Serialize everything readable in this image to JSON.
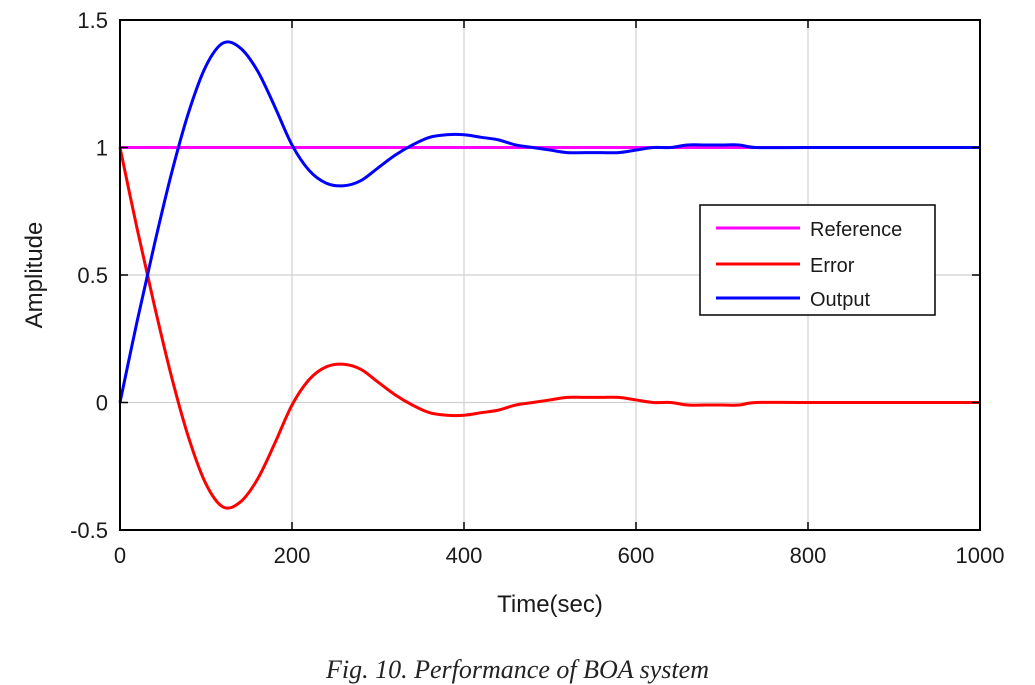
{
  "chart_data": {
    "type": "line",
    "title": "",
    "xlabel": "Time(sec)",
    "ylabel": "Amplitude",
    "xlim": [
      0,
      1000
    ],
    "ylim": [
      -0.5,
      1.5
    ],
    "xticks": [
      0,
      200,
      400,
      600,
      800,
      1000
    ],
    "xtick_labels": [
      "0",
      "200",
      "400",
      "600",
      "800",
      "1000"
    ],
    "yticks": [
      -0.5,
      0,
      0.5,
      1,
      1.5
    ],
    "ytick_labels": [
      "-0.5",
      "0",
      "0.5",
      "1",
      "1.5"
    ],
    "grid": true,
    "legend_position": "right-middle (inside)",
    "x": [
      0,
      20,
      40,
      60,
      80,
      100,
      120,
      140,
      160,
      180,
      200,
      220,
      240,
      260,
      280,
      300,
      320,
      340,
      360,
      380,
      400,
      420,
      440,
      460,
      480,
      500,
      520,
      540,
      560,
      580,
      600,
      620,
      640,
      660,
      680,
      700,
      720,
      740,
      800,
      900,
      1000
    ],
    "series": [
      {
        "name": "Reference",
        "color": "#ff00ff",
        "values": [
          1,
          1,
          1,
          1,
          1,
          1,
          1,
          1,
          1,
          1,
          1,
          1,
          1,
          1,
          1,
          1,
          1,
          1,
          1,
          1,
          1,
          1,
          1,
          1,
          1,
          1,
          1,
          1,
          1,
          1,
          1,
          1,
          1,
          1,
          1,
          1,
          1,
          1,
          1,
          1,
          1
        ]
      },
      {
        "name": "Error",
        "color": "#ff0000",
        "values": [
          1.0,
          0.68,
          0.38,
          0.1,
          -0.14,
          -0.32,
          -0.41,
          -0.39,
          -0.3,
          -0.16,
          -0.01,
          0.09,
          0.14,
          0.15,
          0.13,
          0.08,
          0.03,
          -0.01,
          -0.04,
          -0.05,
          -0.05,
          -0.04,
          -0.03,
          -0.01,
          0.0,
          0.01,
          0.02,
          0.02,
          0.02,
          0.02,
          0.01,
          0.0,
          0.0,
          -0.01,
          -0.01,
          -0.01,
          -0.01,
          0.0,
          0.0,
          0.0,
          0.0
        ]
      },
      {
        "name": "Output",
        "color": "#0000ff",
        "values": [
          0.0,
          0.32,
          0.62,
          0.9,
          1.14,
          1.32,
          1.41,
          1.39,
          1.3,
          1.16,
          1.01,
          0.91,
          0.86,
          0.85,
          0.87,
          0.92,
          0.97,
          1.01,
          1.04,
          1.05,
          1.05,
          1.04,
          1.03,
          1.01,
          1.0,
          0.99,
          0.98,
          0.98,
          0.98,
          0.98,
          0.99,
          1.0,
          1.0,
          1.01,
          1.01,
          1.01,
          1.01,
          1.0,
          1.0,
          1.0,
          1.0
        ]
      }
    ]
  },
  "legend": {
    "items": [
      {
        "label": "Reference",
        "color": "#ff00ff"
      },
      {
        "label": "Error",
        "color": "#ff0000"
      },
      {
        "label": "Output",
        "color": "#0000ff"
      }
    ]
  },
  "caption": "Fig. 10. Performance of BOA system"
}
